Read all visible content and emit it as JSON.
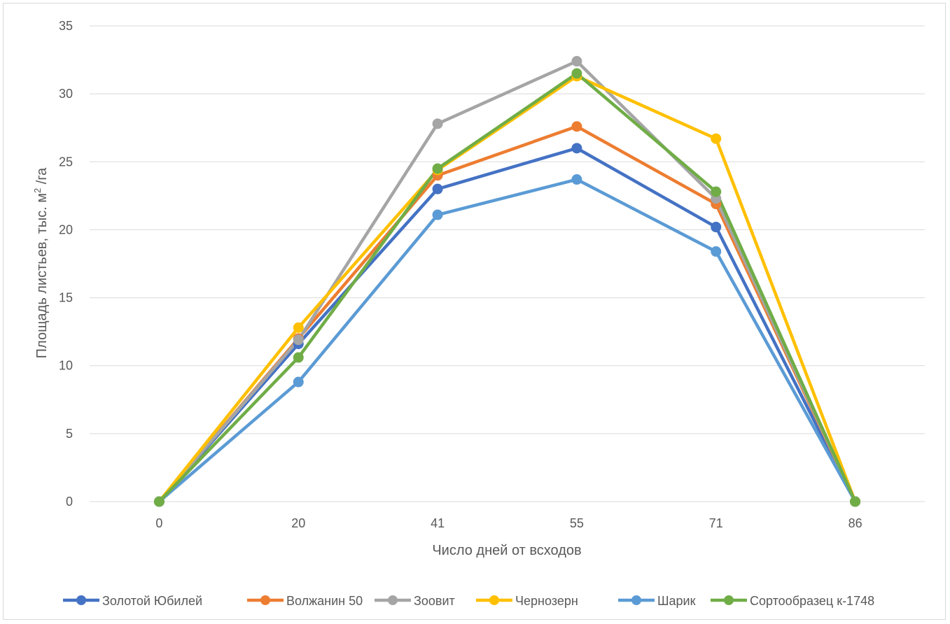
{
  "chart_data": {
    "type": "line",
    "title": "",
    "xlabel": "Число дней от всходов",
    "ylabel_main": "Площадь листьев, тыс. м",
    "ylabel_sup": "2",
    "ylabel_tail": " /га",
    "categories": [
      "0",
      "20",
      "41",
      "55",
      "71",
      "86"
    ],
    "ylim": [
      0,
      35
    ],
    "ytick_step": 5,
    "grid": true,
    "legend_position": "bottom",
    "series": [
      {
        "name": "Золотой Юбилей",
        "color": "#4472c4",
        "values": [
          0,
          11.6,
          23.0,
          26.0,
          20.2,
          0
        ]
      },
      {
        "name": "Волжанин 50",
        "color": "#ed7d31",
        "values": [
          0,
          12.0,
          24.0,
          27.6,
          21.9,
          0
        ]
      },
      {
        "name": "Зоовит",
        "color": "#a5a5a5",
        "values": [
          0,
          11.9,
          27.8,
          32.4,
          22.3,
          0
        ]
      },
      {
        "name": "Чернозерн",
        "color": "#ffc000",
        "values": [
          0,
          12.8,
          24.4,
          31.3,
          26.7,
          0
        ]
      },
      {
        "name": "Шарик",
        "color": "#5b9bd5",
        "values": [
          0,
          8.8,
          21.1,
          23.7,
          18.4,
          0
        ]
      },
      {
        "name": "Сортообразец к-1748",
        "color": "#70ad47",
        "values": [
          0,
          10.6,
          24.5,
          31.5,
          22.8,
          0
        ]
      }
    ]
  }
}
